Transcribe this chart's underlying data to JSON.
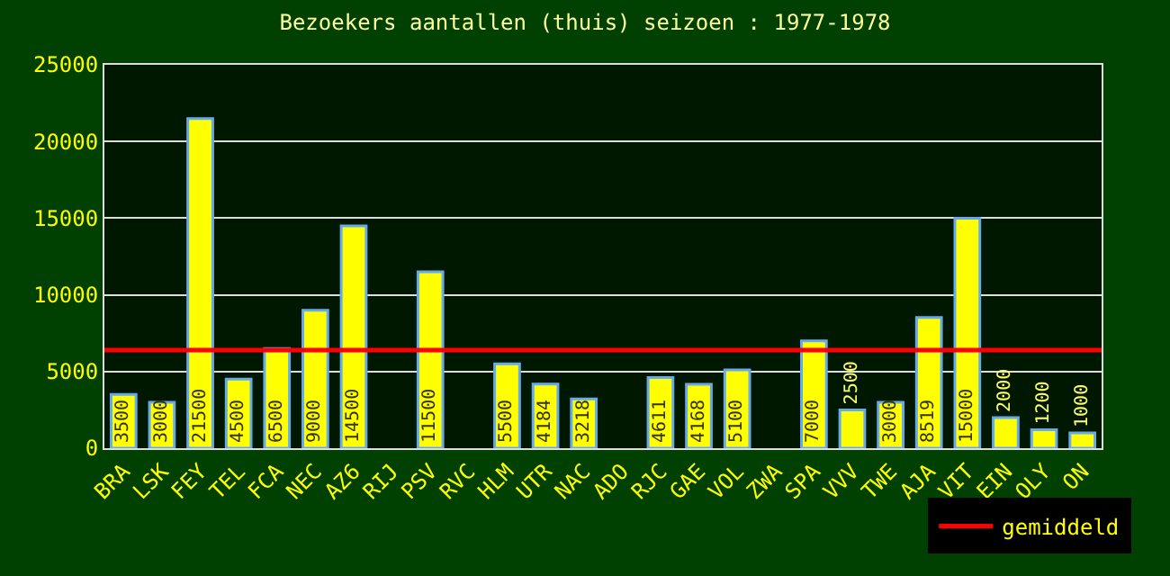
{
  "chart_data": {
    "type": "bar",
    "title": "Bezoekers aantallen (thuis) seizoen : 1977-1978",
    "categories": [
      "BRA",
      "LSK",
      "FEY",
      "TEL",
      "FCA",
      "NEC",
      "AZ6",
      "RIJ",
      "PSV",
      "RVC",
      "HLM",
      "UTR",
      "NAC",
      "ADO",
      "RJC",
      "GAE",
      "VOL",
      "ZWA",
      "SPA",
      "VVV",
      "TWE",
      "AJA",
      "VIT",
      "EIN",
      "OLY",
      "ON"
    ],
    "values": [
      3500,
      3000,
      21500,
      4500,
      6500,
      9000,
      14500,
      null,
      11500,
      null,
      5500,
      4184,
      3218,
      null,
      4611,
      4168,
      5100,
      null,
      7000,
      2500,
      3000,
      8519,
      15000,
      2000,
      1200,
      1000
    ],
    "color": "#ffff00",
    "ylim": [
      0,
      25000
    ],
    "yticks": [
      0,
      5000,
      10000,
      15000,
      20000,
      25000
    ],
    "grid": "y",
    "data_labels": true,
    "ref_lines": [
      {
        "axis": "y",
        "value": 6400,
        "label": "gemiddeld",
        "color": "#ff0000"
      }
    ],
    "legend": "bottom right"
  }
}
